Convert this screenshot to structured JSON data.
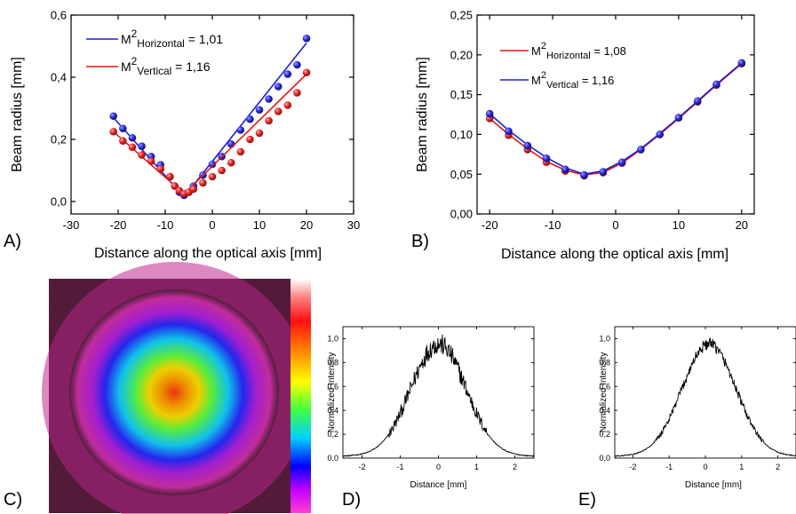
{
  "chart_data": [
    {
      "id": "A",
      "type": "scatter",
      "panel_label": "A)",
      "xlabel": "Distance along the optical axis [mm]",
      "ylabel": "Beam radius [mm]",
      "xlim": [
        -30,
        30
      ],
      "ylim": [
        -0.04,
        0.6
      ],
      "x_ticks": [
        -30,
        -20,
        -10,
        0,
        10,
        20,
        30
      ],
      "x_tick_labels": [
        "-30",
        "-20",
        "-10",
        "0",
        "10",
        "20",
        "30"
      ],
      "y_ticks": [
        0,
        0.2,
        0.4,
        0.6
      ],
      "y_tick_labels": [
        "0,0",
        "0,2",
        "0,4",
        "0,6"
      ],
      "legend_position": "top-left",
      "series": [
        {
          "name": "M²Horizontal = 1,01",
          "legend_main": "M",
          "legend_sup": "2",
          "legend_sub": "Horizontal",
          "legend_tail": " = 1,01",
          "color": "#1f1fd0",
          "x": [
            -21,
            -19,
            -17,
            -15,
            -13,
            -11,
            -9,
            -8,
            -7,
            -6,
            -5,
            -4,
            -2,
            0,
            2,
            4,
            6,
            8,
            10,
            12,
            14,
            16,
            18,
            20
          ],
          "y": [
            0.275,
            0.235,
            0.205,
            0.178,
            0.145,
            0.118,
            0.08,
            0.05,
            0.03,
            0.02,
            0.03,
            0.05,
            0.085,
            0.12,
            0.145,
            0.185,
            0.23,
            0.265,
            0.295,
            0.33,
            0.37,
            0.41,
            0.44,
            0.525
          ],
          "fit_x": [
            -21,
            -6,
            20
          ],
          "fit_y": [
            0.27,
            0.015,
            0.51
          ]
        },
        {
          "name": "M²Vertical = 1,16",
          "legend_main": "M",
          "legend_sup": "2",
          "legend_sub": "Vertical",
          "legend_tail": " = 1,16",
          "color": "#e01818",
          "x": [
            -21,
            -19,
            -17,
            -15,
            -13,
            -11,
            -9,
            -8,
            -7,
            -6,
            -5,
            -4,
            -2,
            0,
            2,
            4,
            6,
            8,
            10,
            12,
            14,
            16,
            18,
            20
          ],
          "y": [
            0.225,
            0.195,
            0.175,
            0.15,
            0.13,
            0.105,
            0.08,
            0.05,
            0.035,
            0.025,
            0.03,
            0.04,
            0.06,
            0.08,
            0.1,
            0.125,
            0.16,
            0.2,
            0.22,
            0.26,
            0.29,
            0.31,
            0.35,
            0.415
          ],
          "fit_x": [
            -21,
            -6,
            20
          ],
          "fit_y": [
            0.225,
            0.025,
            0.41
          ]
        }
      ]
    },
    {
      "id": "B",
      "type": "scatter",
      "panel_label": "B)",
      "xlabel": "Distance along the optical axis [mm]",
      "ylabel": "Beam radius [mm]",
      "xlim": [
        -22,
        22
      ],
      "ylim": [
        0,
        0.25
      ],
      "x_ticks": [
        -20,
        -10,
        0,
        10,
        20
      ],
      "x_tick_labels": [
        "-20",
        "-10",
        "0",
        "10",
        "20"
      ],
      "y_ticks": [
        0,
        0.05,
        0.1,
        0.15,
        0.2,
        0.25
      ],
      "y_tick_labels": [
        "0,00",
        "0,05",
        "0,10",
        "0,15",
        "0,20",
        "0,25"
      ],
      "legend_position": "top-left",
      "series": [
        {
          "name": "M²Horizontal = 1,08",
          "legend_main": "M",
          "legend_sup": "2",
          "legend_sub": "Horizontal",
          "legend_tail": " = 1,08",
          "color": "#e01818",
          "x": [
            -20,
            -17,
            -14,
            -11,
            -8,
            -5,
            -2,
            1,
            4,
            7,
            10,
            13,
            16,
            20
          ],
          "y": [
            0.12,
            0.099,
            0.081,
            0.065,
            0.054,
            0.048,
            0.052,
            0.064,
            0.081,
            0.1,
            0.121,
            0.141,
            0.162,
            0.189
          ],
          "fit_x": [
            -20,
            -17,
            -14,
            -11,
            -8,
            -5,
            -2,
            1,
            4,
            7,
            10,
            13,
            16,
            20
          ],
          "fit_y": [
            0.12,
            0.1,
            0.082,
            0.066,
            0.055,
            0.049,
            0.052,
            0.064,
            0.081,
            0.1,
            0.12,
            0.141,
            0.162,
            0.189
          ]
        },
        {
          "name": "M²Vertical = 1,16",
          "legend_main": "M",
          "legend_sup": "2",
          "legend_sub": "Vertical",
          "legend_tail": "      = 1,16",
          "color": "#1f1fd0",
          "x": [
            -20,
            -17,
            -14,
            -11,
            -8,
            -5,
            -2,
            1,
            4,
            7,
            10,
            13,
            16,
            20
          ],
          "y": [
            0.126,
            0.104,
            0.086,
            0.07,
            0.056,
            0.049,
            0.053,
            0.065,
            0.081,
            0.1,
            0.121,
            0.142,
            0.163,
            0.19
          ],
          "fit_x": [
            -20,
            -17,
            -14,
            -11,
            -8,
            -5,
            -2,
            1,
            4,
            7,
            10,
            13,
            16,
            20
          ],
          "fit_y": [
            0.126,
            0.105,
            0.087,
            0.071,
            0.058,
            0.05,
            0.054,
            0.066,
            0.082,
            0.101,
            0.121,
            0.142,
            0.163,
            0.19
          ]
        }
      ]
    },
    {
      "id": "C",
      "type": "heatmap",
      "panel_label": "C)",
      "colormap": [
        "#ffffff",
        "#ff3030",
        "#ff8000",
        "#ffff00",
        "#40ff40",
        "#00c0ff",
        "#0000ff",
        "#ff00ff",
        "#6a2040"
      ]
    },
    {
      "id": "D",
      "type": "line",
      "panel_label": "D)",
      "xlabel": "Distance [mm]",
      "ylabel": "Normalized Intensity",
      "xlim": [
        -2.5,
        2.5
      ],
      "ylim": [
        0,
        1.1
      ],
      "x_ticks": [
        -2,
        -1,
        0,
        1,
        2
      ],
      "x_tick_labels": [
        "-2",
        "-1",
        "0",
        "1",
        "2"
      ],
      "y_ticks": [
        0,
        0.2,
        0.4,
        0.6,
        0.8,
        1.0
      ],
      "y_tick_labels": [
        "0,0",
        "0,2",
        "0,4",
        "0,6",
        "0,8",
        "1,0"
      ],
      "profile": {
        "center": 0.0,
        "sigma": 0.72,
        "peak": 1.0,
        "noise": 0.09,
        "noise_halfwidth": 1.3,
        "floor": 0.015
      }
    },
    {
      "id": "E",
      "type": "line",
      "panel_label": "E)",
      "xlabel": "Distance [mm]",
      "ylabel": "Normalized Intensity",
      "xlim": [
        -2.5,
        2.5
      ],
      "ylim": [
        0,
        1.1
      ],
      "x_ticks": [
        -2,
        -1,
        0,
        1,
        2
      ],
      "x_tick_labels": [
        "-2",
        "-1",
        "0",
        "1",
        "2"
      ],
      "y_ticks": [
        0,
        0.2,
        0.4,
        0.6,
        0.8,
        1.0
      ],
      "y_tick_labels": [
        "0,0",
        "0,2",
        "0,4",
        "0,6",
        "0,8",
        "1,0"
      ],
      "profile": {
        "center": 0.1,
        "sigma": 0.74,
        "peak": 1.0,
        "noise": 0.05,
        "noise_halfwidth": 1.5,
        "floor": 0.015
      }
    }
  ]
}
